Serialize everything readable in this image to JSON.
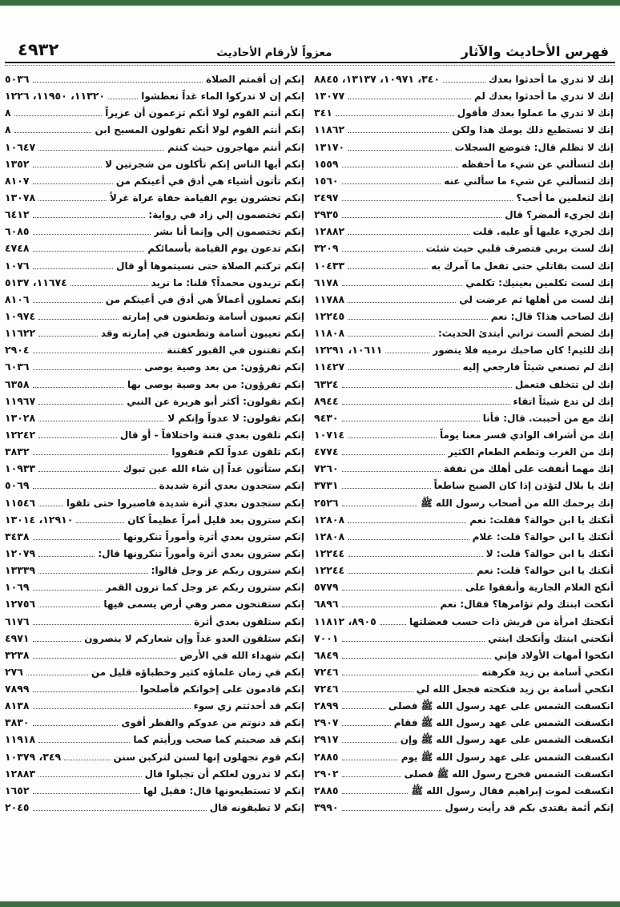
{
  "header": {
    "right_title": "فهرس الأحاديث والآثار",
    "center_title": "معزواً لأرقام الأحاديث",
    "page_number": "٤٩٣٢"
  },
  "colors": {
    "edge_bar": "#3c6e43"
  },
  "columns": {
    "right": [
      {
        "t": "إنك لا تدري ما أحدثوا بعدك",
        "n": "٣٤٠، ١٠٩٧١، ١٣١٣٧، ٨٨٤٥"
      },
      {
        "t": "إنك لا تدري ما أحدثوا بعدك لم",
        "n": "١٣٠٧٧"
      },
      {
        "t": "إنك لا تدري ما عملوا بعدك فأقول",
        "n": "٣٤١"
      },
      {
        "t": "إنك لا تستطيع ذلك يومك هذا ولكن",
        "n": "١١٨٦٢"
      },
      {
        "t": "إنك لا تظلم قال: فتوضع السجلات",
        "n": "١٣١٧٠"
      },
      {
        "t": "إنك لتسألني عن شيء ما أحفظه",
        "n": "١٥٥٩"
      },
      {
        "t": "إنك لتسألني عن شيء ما سألني عنه",
        "n": "١٥٦٠"
      },
      {
        "t": "إنك لتعلمين ما أحب؟",
        "n": "٢٤٩٧"
      },
      {
        "t": "إنك لجريء ألمضر؟ قال",
        "n": "٢٩٣٥"
      },
      {
        "t": "إنك لجريء عليها أو عليه. قلت",
        "n": "١٢٨٨٢"
      },
      {
        "t": "إنك لست بربي فتصرف قلبي حيث شئت",
        "n": "٣٢٠٩"
      },
      {
        "t": "إنك لست بقاتلي حتى تفعل ما آمرك به",
        "n": "١٠٤٣٣"
      },
      {
        "t": "إنك لست تكلمين بعينيك: تكلمي",
        "n": "٦١٧٨"
      },
      {
        "t": "إنك لست من أهلها ثم عرضت لي",
        "n": "١١٧٨٨"
      },
      {
        "t": "إنك لصاحب هذا؟ قال: نعم",
        "n": "١٢٢٤٥"
      },
      {
        "t": "إنك لضخم ألست تراني أبتدئ الحديث:",
        "n": "١١٨٠٨"
      },
      {
        "t": "إنك للئيم! كان صاحبك نرميه فلا يتضور",
        "n": "١٠٦١١، ١٢٢٩١"
      },
      {
        "t": "إنك لم تصنعي شيئاً فارجعي إليه",
        "n": "١١٤٢٧"
      },
      {
        "t": "إنك لن تتخلف فتعمل",
        "n": "٦٣٢٤"
      },
      {
        "t": "إنك لن تدع شيئاً اتقاء",
        "n": "٨٩٤٤"
      },
      {
        "t": "إنك مع من أحببت. قال: فأنا",
        "n": "٩٤٣٠"
      },
      {
        "t": "إنك من أشراف الوادي فسر معنا يوماً",
        "n": "١٠٧١٤"
      },
      {
        "t": "إنك من الغرب وتطعم الطعام الكثير",
        "n": "٤٧٧٤"
      },
      {
        "t": "إنك مهما أنفقت على أهلك من نفقة",
        "n": "٧٢٦٠"
      },
      {
        "t": "إنك يا بلال لتؤذن إذا كان الصبح ساطعاً",
        "n": "٣٧٣١"
      },
      {
        "t": "إنك يرحمك الله من أصحاب رسول الله ﷺ",
        "n": "٢٥٢٦"
      },
      {
        "t": "أنكتك يا ابن حوالة؟ فقلت: نعم",
        "n": "١٢٨٠٨"
      },
      {
        "t": "أنكتك يا ابن حوالة؟ قلت: غلام",
        "n": "١٢٨٠٨"
      },
      {
        "t": "أنكتك يا ابن حوالة؟ قلت: لا",
        "n": "١٢٢٤٤"
      },
      {
        "t": "أنكتك يا ابن حوالة؟ قلت: نعم",
        "n": "١٢٢٤٤"
      },
      {
        "t": "أنكح الغلام الجارية وأنفقوا على",
        "n": "٥٧٧٩"
      },
      {
        "t": "أنكحت ابنتك ولم تؤامرها؟ فقال: نعم",
        "n": "٦٨٩٦"
      },
      {
        "t": "أنكحتك امرأة من قريش ذات حسب فعضلتها",
        "n": "٨٩٠٥، ١١٨١٢"
      },
      {
        "t": "أنكحني ابنتك وأنكحك ابنتي",
        "n": "٧٠٠١"
      },
      {
        "t": "انكحوا أمهات الأولاد فإني",
        "n": "٦٨٤٩"
      },
      {
        "t": "انكحي أسامة بن زيد فكرهته",
        "n": "٧٢٤٦"
      },
      {
        "t": "انكحي أسامة بن زيد فنكحته فجعل الله لي",
        "n": "٧٢٤٦"
      },
      {
        "t": "انكسفت الشمس على عهد رسول الله ﷺ فصلى",
        "n": "٢٨٩٩"
      },
      {
        "t": "انكسفت الشمس على عهد رسول الله ﷺ فقام",
        "n": "٢٩٠٧"
      },
      {
        "t": "انكسفت الشمس على عهد رسول الله ﷺ وإن",
        "n": "٢٩١٧"
      },
      {
        "t": "انكسفت الشمس على عهد رسول الله ﷺ يوم",
        "n": "٢٨٨٥"
      },
      {
        "t": "انكسفت الشمس فخرج رسول الله ﷺ فصلى",
        "n": "٢٩٠٢"
      },
      {
        "t": "انكسفت لموت إبراهيم فقال رسول الله ﷺ",
        "n": "٢٨٨٥"
      },
      {
        "t": "إنكم أئمة يقتدى بكم قد رأيت رسول",
        "n": "٣٩٩٠"
      }
    ],
    "left": [
      {
        "t": "إنكم إن أقمتم الصلاة",
        "n": "٥٠٣٦"
      },
      {
        "t": "إنكم إن لا تدركوا الماء غداً تعطشوا",
        "n": "١١٣٢٠، ١١٩٥٠، ١٢٢٦"
      },
      {
        "t": "إنكم أنتم القوم لولا أنكم تزعمون أن عزيراً",
        "n": "٨"
      },
      {
        "t": "إنكم أنتم القوم لولا أنكم تقولون المسيح ابن",
        "n": "٨"
      },
      {
        "t": "إنكم أنتم مهاجرون حيث كنتم",
        "n": "١٠٦٤٧"
      },
      {
        "t": "إنكم أيها الناس إنكم تأكلون من شجرتين لا",
        "n": "١٣٥٢"
      },
      {
        "t": "إنكم تأتون أشياء هي أدق في أعينكم من",
        "n": "٨١٠٧"
      },
      {
        "t": "إنكم تحشرون يوم القيامة حفاة عراة غرلاً",
        "n": "١٣٠٧٨"
      },
      {
        "t": "إنكم تختصمون إلي زاد في رواية:",
        "n": "٦٤١٢"
      },
      {
        "t": "إنكم تختصمون إلي وإنما أنا بشر",
        "n": "٦٠٨٥"
      },
      {
        "t": "إنكم تدعون يوم القيامة بأسمائكم",
        "n": "٤٧٤٨"
      },
      {
        "t": "إنكم تركتم الصلاة حتى نسيتموها أو قال",
        "n": "١٠٧٦"
      },
      {
        "t": "إنكم تريدون محمداً؟ قلنا: ما نريد",
        "n": "١١٦٧٤، ٥١٣٧"
      },
      {
        "t": "إنكم تعملون أعمالاً هي أدق في أعينكم من",
        "n": "٨١٠٦"
      },
      {
        "t": "إنكم تعيبون أسامة وتطعنون في إمارته",
        "n": "١٠٩٧٤"
      },
      {
        "t": "إنكم تعيبون أسامة وتطعنون في إمارته وقد",
        "n": "١١٦٢٢"
      },
      {
        "t": "إنكم تفتنون في القبور كفتنة",
        "n": "٢٩٠٤"
      },
      {
        "t": "إنكم تقرؤون: من بعد وصية يوصى",
        "n": "٦٠٣٦"
      },
      {
        "t": "إنكم تقرؤون: من بعد وصية يوصى بها",
        "n": "٦٣٥٨"
      },
      {
        "t": "إنكم تقولون: أكثر أبو هريرة عن النبي",
        "n": "١١٩٦٧"
      },
      {
        "t": "إنكم تقولون: لا عدواً وإنكم لا",
        "n": "١٣٠٢٨"
      },
      {
        "t": "إنكم تلقون بعدي فتنة واختلافاً - أو قال",
        "n": "١٢٢٤٢"
      },
      {
        "t": "إنكم تلقون عدواً لكم فتقووا",
        "n": "٣٨٣٢"
      },
      {
        "t": "إنكم ستأتون غداً إن شاء الله عين تبوك",
        "n": "١٠٩٣٣"
      },
      {
        "t": "إنكم ستجدون بعدي أثرة شديدة",
        "n": "٥٠٦٩"
      },
      {
        "t": "إنكم ستجدون بعدي أثرة شديدة فاصبروا حتى تلقوا",
        "n": "١١٥٤٦"
      },
      {
        "t": "إنكم سترون بعد قليل أمراً عظيماً كان",
        "n": "١٢٩١٠، ١٣٠١٤"
      },
      {
        "t": "إنكم سترون بعدي أثرة وأموراً تنكرونها",
        "n": "٣٤٣٨"
      },
      {
        "t": "إنكم سترون بعدي أثرة وأموراً تنكرونها قال:",
        "n": "١٢٠٧٩"
      },
      {
        "t": "إنكم سترون ربكم عز وجل قالوا:",
        "n": "١٣٣٣٩"
      },
      {
        "t": "إنكم سترون ربكم عز وجل كما ترون القمر",
        "n": "١٠٦٩"
      },
      {
        "t": "إنكم ستفتحون مصر وهي أرض يسمى فيها",
        "n": "١٢٧٥٦"
      },
      {
        "t": "إنكم ستلقون بعدي أثرة",
        "n": "٦١٧٦"
      },
      {
        "t": "إنكم ستلقون العدو غداً وإن شعاركم لا ينصرون",
        "n": "٤٩٧١"
      },
      {
        "t": "إنكم شهداء الله في الأرض",
        "n": "٣٢٣٨"
      },
      {
        "t": "إنكم في زمان علماؤه كثير وخطباؤه قليل من",
        "n": "٢٧٦"
      },
      {
        "t": "إنكم قادمون على إخوانكم فأصلحوا",
        "n": "٧٨٩٩"
      },
      {
        "t": "إنكم قد أحدثتم زي سوء",
        "n": "٨١٣٨"
      },
      {
        "t": "إنكم قد دنوتم من عدوكم والفطر أقوى",
        "n": "٣٨٣٠"
      },
      {
        "t": "إنكم قد صحبتم كما صحب ورأيتم كما",
        "n": "١١٩١٨"
      },
      {
        "t": "إنكم قوم تجهلون إنها لسنن لتركبن سنن",
        "n": "٣٤٩، ١٠٣٧٩"
      },
      {
        "t": "إنكم لا تدرون لعلكم أن تجبلوا قال",
        "n": "١٢٨٨٣"
      },
      {
        "t": "إنكم لا تستطيعونها قال: فقيل لها",
        "n": "١٦٥٢"
      },
      {
        "t": "إنكم لا تطيقونه قال",
        "n": "٢٠٤٥"
      }
    ]
  }
}
